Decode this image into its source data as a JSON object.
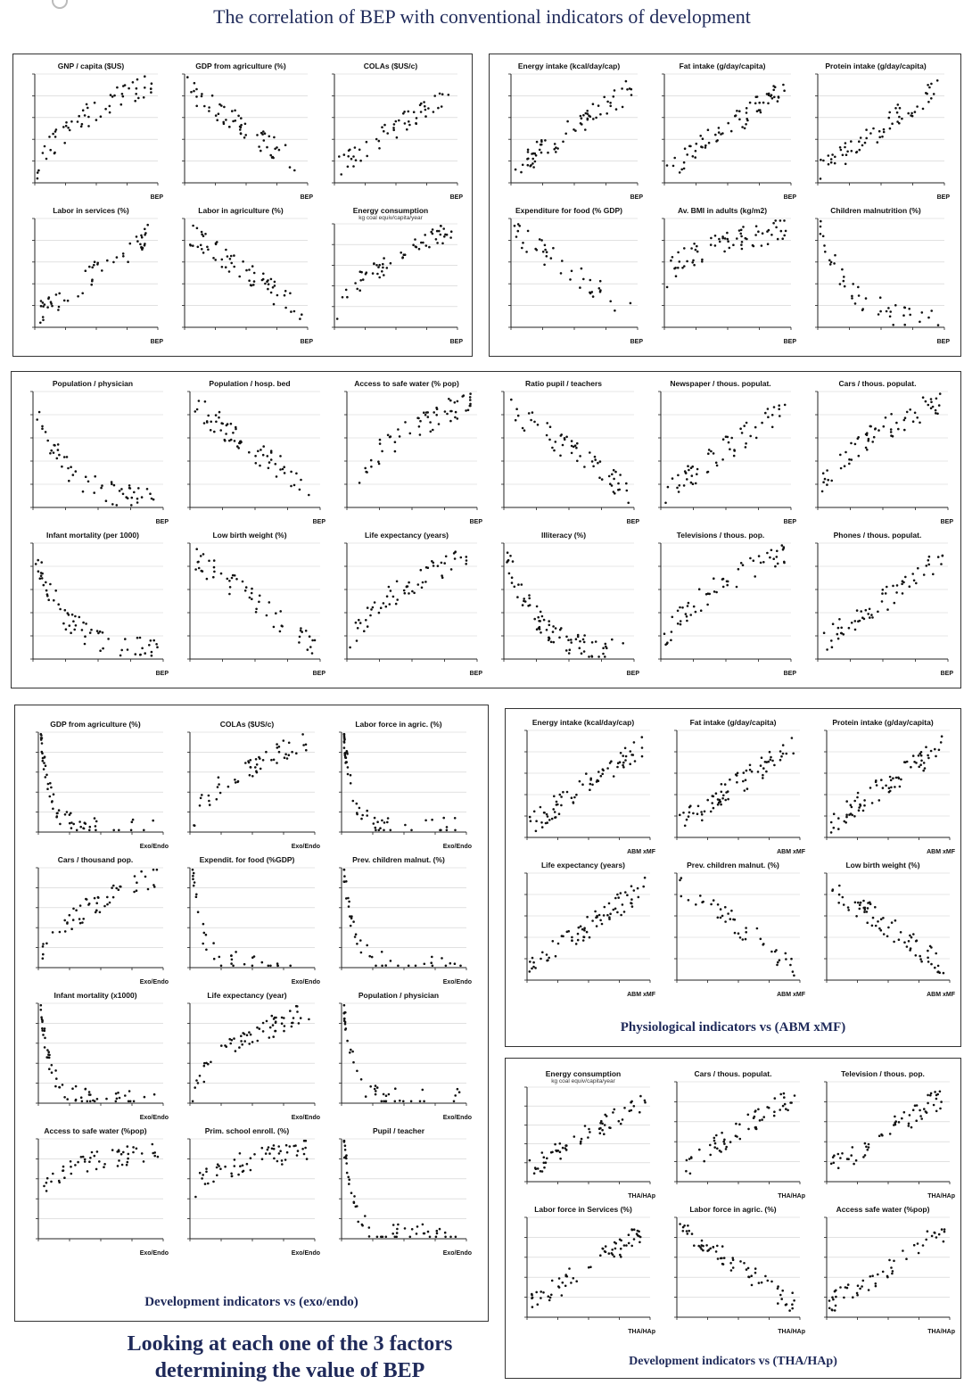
{
  "page": {
    "title": "The correlation of BEP with conventional indicators of development",
    "footer": "Looking at each one of the 3 factors determining the value of BEP"
  },
  "panels": [
    {
      "id": "p1",
      "caption": ""
    },
    {
      "id": "p2",
      "caption": ""
    },
    {
      "id": "p3",
      "caption": ""
    },
    {
      "id": "p4",
      "caption": "Development indicators vs (exo/endo)"
    },
    {
      "id": "p5",
      "caption": "Physiological indicators vs (ABM xMF)"
    },
    {
      "id": "p6",
      "caption": "Development indicators vs (THA/HAp)"
    }
  ],
  "chart_data": [
    {
      "panel": "p1",
      "type": "scatter",
      "title": "GNP / capita ($US)",
      "xlabel": "BEP",
      "trend": "up-concave",
      "n": 60
    },
    {
      "panel": "p1",
      "type": "scatter",
      "title": "GDP from agriculture (%)",
      "xlabel": "BEP",
      "trend": "down",
      "n": 60
    },
    {
      "panel": "p1",
      "type": "scatter",
      "title": "COLAs ($US/c)",
      "xlabel": "BEP",
      "trend": "up",
      "n": 55
    },
    {
      "panel": "p1",
      "type": "scatter",
      "title": "Labor in services (%)",
      "xlabel": "BEP",
      "trend": "up",
      "n": 55
    },
    {
      "panel": "p1",
      "type": "scatter",
      "title": "Labor in agriculture (%)",
      "xlabel": "BEP",
      "trend": "down",
      "n": 65
    },
    {
      "panel": "p1",
      "type": "scatter",
      "title": "Energy consumption",
      "subtitle": "kg coal equiv/capita/year",
      "xlabel": "BEP",
      "trend": "up-concave",
      "n": 60
    },
    {
      "panel": "p2",
      "type": "scatter",
      "title": "Energy intake (kcal/day/cap)",
      "xlabel": "BEP",
      "trend": "up",
      "n": 70
    },
    {
      "panel": "p2",
      "type": "scatter",
      "title": "Fat intake (g/day/capita)",
      "xlabel": "BEP",
      "trend": "up",
      "n": 70
    },
    {
      "panel": "p2",
      "type": "scatter",
      "title": "Protein intake (g/day/capita)",
      "xlabel": "BEP",
      "trend": "up",
      "n": 65
    },
    {
      "panel": "p2",
      "type": "scatter",
      "title": "Expenditure for food (% GDP)",
      "xlabel": "BEP",
      "trend": "down",
      "n": 40
    },
    {
      "panel": "p2",
      "type": "scatter",
      "title": "Av. BMI in adults (kg/m2)",
      "xlabel": "BEP",
      "trend": "up-flat",
      "n": 70
    },
    {
      "panel": "p2",
      "type": "scatter",
      "title": "Children malnutrition (%)",
      "xlabel": "BEP",
      "trend": "down-steep",
      "n": 45
    },
    {
      "panel": "p3",
      "type": "scatter",
      "title": "Population / physician",
      "xlabel": "BEP",
      "trend": "down-steep",
      "n": 55
    },
    {
      "panel": "p3",
      "type": "scatter",
      "title": "Population / hosp. bed",
      "xlabel": "BEP",
      "trend": "down",
      "n": 65
    },
    {
      "panel": "p3",
      "type": "scatter",
      "title": "Access to safe water (% pop)",
      "xlabel": "BEP",
      "trend": "up-concave",
      "n": 60
    },
    {
      "panel": "p3",
      "type": "scatter",
      "title": "Ratio pupil / teachers",
      "xlabel": "BEP",
      "trend": "down",
      "n": 60
    },
    {
      "panel": "p3",
      "type": "scatter",
      "title": "Newspaper / thous. populat.",
      "xlabel": "BEP",
      "trend": "up",
      "n": 60
    },
    {
      "panel": "p3",
      "type": "scatter",
      "title": "Cars / thous. populat.",
      "xlabel": "BEP",
      "trend": "up-concave",
      "n": 65
    },
    {
      "panel": "p3",
      "type": "scatter",
      "title": "Infant mortality (per 1000)",
      "xlabel": "BEP",
      "trend": "down-steep",
      "n": 65
    },
    {
      "panel": "p3",
      "type": "scatter",
      "title": "Low birth weight (%)",
      "xlabel": "BEP",
      "trend": "down",
      "n": 55
    },
    {
      "panel": "p3",
      "type": "scatter",
      "title": "Life expectancy (years)",
      "xlabel": "BEP",
      "trend": "up-concave",
      "n": 60
    },
    {
      "panel": "p3",
      "type": "scatter",
      "title": "Illiteracy (%)",
      "xlabel": "BEP",
      "trend": "down-steep",
      "n": 80
    },
    {
      "panel": "p3",
      "type": "scatter",
      "title": "Televisions / thous. pop.",
      "xlabel": "BEP",
      "trend": "up-concave",
      "n": 60
    },
    {
      "panel": "p3",
      "type": "scatter",
      "title": "Phones / thous. populat.",
      "xlabel": "BEP",
      "trend": "up",
      "n": 60
    },
    {
      "panel": "p4",
      "type": "scatter",
      "title": "GDP from agriculture (%)",
      "xlabel": "Exo/Endo",
      "trend": "L-shape",
      "n": 60
    },
    {
      "panel": "p4",
      "type": "scatter",
      "title": "COLAs ($US/c)",
      "xlabel": "Exo/Endo",
      "trend": "up-concave",
      "n": 55
    },
    {
      "panel": "p4",
      "type": "scatter",
      "title": "Labor force in agric. (%)",
      "xlabel": "Exo/Endo",
      "trend": "L-shape",
      "n": 60
    },
    {
      "panel": "p4",
      "type": "scatter",
      "title": "Cars / thousand pop.",
      "xlabel": "Exo/Endo",
      "trend": "up-concave",
      "n": 55
    },
    {
      "panel": "p4",
      "type": "scatter",
      "title": "Expendit. for food (%GDP)",
      "xlabel": "Exo/Endo",
      "trend": "L-shape",
      "n": 35
    },
    {
      "panel": "p4",
      "type": "scatter",
      "title": "Prev. children malnut. (%)",
      "xlabel": "Exo/Endo",
      "trend": "L-shape",
      "n": 40
    },
    {
      "panel": "p4",
      "type": "scatter",
      "title": "Infant mortality (x1000)",
      "xlabel": "Exo/Endo",
      "trend": "L-shape",
      "n": 60
    },
    {
      "panel": "p4",
      "type": "scatter",
      "title": "Life expectancy (year)",
      "xlabel": "Exo/Endo",
      "trend": "up-concave",
      "n": 65
    },
    {
      "panel": "p4",
      "type": "scatter",
      "title": "Population / physician",
      "xlabel": "Exo/Endo",
      "trend": "L-shape",
      "n": 45
    },
    {
      "panel": "p4",
      "type": "scatter",
      "title": "Access to safe water (%pop)",
      "xlabel": "Exo/Endo",
      "trend": "up-flat",
      "n": 55
    },
    {
      "panel": "p4",
      "type": "scatter",
      "title": "Prim. school enroll. (%)",
      "xlabel": "Exo/Endo",
      "trend": "up-flat",
      "n": 60
    },
    {
      "panel": "p4",
      "type": "scatter",
      "title": "Pupil / teacher",
      "xlabel": "Exo/Endo",
      "trend": "L-shape",
      "n": 55
    },
    {
      "panel": "p5",
      "type": "scatter",
      "title": "Energy intake (kcal/day/cap)",
      "xlabel": "ABM xMF",
      "trend": "up",
      "n": 75
    },
    {
      "panel": "p5",
      "type": "scatter",
      "title": "Fat intake (g/day/capita)",
      "xlabel": "ABM xMF",
      "trend": "up",
      "n": 75
    },
    {
      "panel": "p5",
      "type": "scatter",
      "title": "Protein intake (g/day/capita)",
      "xlabel": "ABM xMF",
      "trend": "up",
      "n": 75
    },
    {
      "panel": "p5",
      "type": "scatter",
      "title": "Life expectancy (years)",
      "xlabel": "ABM xMF",
      "trend": "up",
      "n": 75
    },
    {
      "panel": "p5",
      "type": "scatter",
      "title": "Prev. children malnut. (%)",
      "xlabel": "ABM xMF",
      "trend": "down",
      "n": 45
    },
    {
      "panel": "p5",
      "type": "scatter",
      "title": "Low birth weight (%)",
      "xlabel": "ABM xMF",
      "trend": "down",
      "n": 70
    },
    {
      "panel": "p6",
      "type": "scatter",
      "title": "Energy consumption",
      "subtitle": "kg coal equiv/capita/year",
      "xlabel": "THA/HAp",
      "trend": "up",
      "n": 65
    },
    {
      "panel": "p6",
      "type": "scatter",
      "title": "Cars / thous. populat.",
      "xlabel": "THA/HAp",
      "trend": "up",
      "n": 60
    },
    {
      "panel": "p6",
      "type": "scatter",
      "title": "Television / thous. pop.",
      "xlabel": "THA/HAp",
      "trend": "up",
      "n": 60
    },
    {
      "panel": "p6",
      "type": "scatter",
      "title": "Labor force in Services (%)",
      "xlabel": "THA/HAp",
      "trend": "up",
      "n": 65
    },
    {
      "panel": "p6",
      "type": "scatter",
      "title": "Labor force in agric. (%)",
      "xlabel": "THA/HAp",
      "trend": "down",
      "n": 65
    },
    {
      "panel": "p6",
      "type": "scatter",
      "title": "Access safe water (%pop)",
      "xlabel": "THA/HAp",
      "trend": "up",
      "n": 55
    }
  ]
}
